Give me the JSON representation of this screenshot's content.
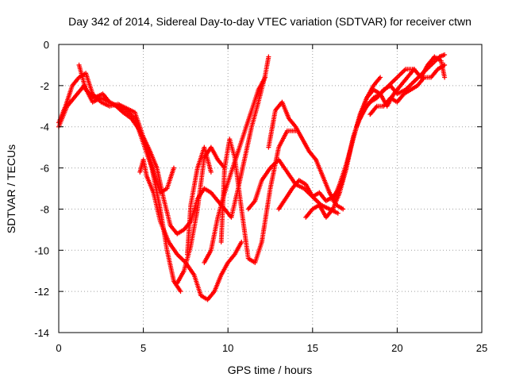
{
  "chart_data": {
    "type": "scatter",
    "title": "Day 342 of 2014, Sidereal Day-to-day VTEC variation (SDTVAR) for receiver ctwn",
    "xlabel": "GPS time / hours",
    "ylabel": "SDTVAR / TECUs",
    "xlim": [
      0,
      25
    ],
    "ylim": [
      -14,
      0
    ],
    "xticks": [
      0,
      5,
      10,
      15,
      20,
      25
    ],
    "yticks": [
      0,
      -2,
      -4,
      -6,
      -8,
      -10,
      -12,
      -14
    ],
    "xtick_labels": [
      "0",
      "5",
      "10",
      "15",
      "20",
      "25"
    ],
    "ytick_labels": [
      "0",
      "-2",
      "-4",
      "-6",
      "-8",
      "-10",
      "-12",
      "-14"
    ],
    "grid": true,
    "marker": "+",
    "color": "#ff0000",
    "series": [
      {
        "x": [
          0,
          0.4,
          0.8,
          1.2,
          1.6,
          2.0,
          2.5,
          3.0,
          3.5,
          4.0,
          4.5,
          5.0,
          5.4,
          5.8,
          6.2,
          6.6,
          7.0
        ],
        "y": [
          -3.8,
          -3.0,
          -2.0,
          -1.6,
          -1.4,
          -2.4,
          -2.8,
          -3.0,
          -2.9,
          -3.1,
          -3.3,
          -4.5,
          -5.2,
          -6.0,
          -7.5,
          -8.8,
          -9.2
        ]
      },
      {
        "x": [
          7.0,
          7.4,
          7.8,
          8.2,
          8.6,
          9.0,
          9.4,
          9.8,
          10.2,
          10.6,
          11.0,
          11.4,
          11.8,
          12.2,
          12.4
        ],
        "y": [
          -9.2,
          -9.0,
          -8.6,
          -7.5,
          -7.0,
          -7.2,
          -7.6,
          -8.0,
          -8.4,
          -7.0,
          -5.5,
          -4.0,
          -2.8,
          -1.5,
          -0.6
        ]
      },
      {
        "x": [
          0,
          0.5,
          1.0,
          1.5,
          2.0,
          2.5,
          3.0,
          3.5,
          4.0,
          4.5,
          5.0,
          5.5,
          6.0,
          6.4,
          6.8,
          7.2
        ],
        "y": [
          -4.0,
          -3.0,
          -2.5,
          -2.0,
          -2.8,
          -2.6,
          -2.8,
          -3.0,
          -3.2,
          -3.6,
          -4.8,
          -6.0,
          -8.0,
          -10.0,
          -11.5,
          -12.0
        ]
      },
      {
        "x": [
          1.2,
          1.6,
          2.1,
          2.6,
          3.0,
          3.4,
          3.8,
          4.3,
          4.8,
          5.2,
          5.6,
          6.0,
          6.4,
          6.8
        ],
        "y": [
          -1.0,
          -2.2,
          -2.6,
          -2.4,
          -2.8,
          -3.0,
          -3.3,
          -3.6,
          -4.2,
          -5.0,
          -6.2,
          -7.2,
          -7.0,
          -6.0
        ]
      },
      {
        "x": [
          4.8,
          5.0,
          5.2,
          5.6,
          6.0,
          6.5,
          7.0,
          7.5,
          8.0,
          8.4,
          8.8,
          9.2,
          9.6,
          10.0,
          10.4,
          10.8
        ],
        "y": [
          -6.2,
          -5.6,
          -6.4,
          -7.2,
          -8.6,
          -9.6,
          -10.2,
          -10.6,
          -11.2,
          -12.2,
          -12.4,
          -12.0,
          -11.2,
          -10.6,
          -10.2,
          -9.6
        ]
      },
      {
        "x": [
          7.0,
          7.4,
          7.8,
          8.2,
          8.6,
          9.0,
          9.4,
          9.8
        ],
        "y": [
          -11.6,
          -11.0,
          -9.8,
          -8.0,
          -5.5,
          -5.0,
          -5.6,
          -6.0
        ]
      },
      {
        "x": [
          7.6,
          7.8,
          8.2,
          8.6,
          9.0
        ],
        "y": [
          -10.2,
          -7.8,
          -6.0,
          -5.0,
          -6.2
        ]
      },
      {
        "x": [
          8.6,
          9.0,
          9.4,
          9.8,
          10.2,
          10.6,
          11.0,
          11.4,
          11.8,
          12.2
        ],
        "y": [
          -10.6,
          -10.0,
          -8.4,
          -7.2,
          -6.2,
          -5.2,
          -4.2,
          -3.2,
          -2.2,
          -1.6
        ]
      },
      {
        "x": [
          9.6,
          9.8,
          10.1,
          10.4,
          10.8,
          11.2,
          11.6,
          12.0,
          12.5,
          13.0,
          13.5,
          14.0
        ],
        "y": [
          -9.6,
          -6.0,
          -4.6,
          -5.5,
          -8.0,
          -10.4,
          -10.6,
          -9.6,
          -7.0,
          -5.0,
          -4.2,
          -4.2
        ]
      },
      {
        "x": [
          12.4,
          12.8,
          13.2,
          13.6,
          14.0,
          14.4,
          14.8,
          15.2,
          15.6,
          16.0,
          16.4,
          16.8
        ],
        "y": [
          -5.0,
          -3.2,
          -2.8,
          -3.6,
          -4.0,
          -4.6,
          -5.2,
          -5.6,
          -6.4,
          -7.2,
          -7.8,
          -8.0
        ]
      },
      {
        "x": [
          11.2,
          11.6,
          12.0,
          12.5,
          13.0,
          13.5,
          14.0,
          14.5,
          15.0,
          15.5,
          16.0,
          16.5
        ],
        "y": [
          -8.0,
          -7.6,
          -6.6,
          -6.0,
          -5.6,
          -6.2,
          -6.8,
          -7.0,
          -7.4,
          -7.8,
          -8.0,
          -8.2
        ]
      },
      {
        "x": [
          13.0,
          13.4,
          13.8,
          14.2,
          14.6,
          15.0,
          15.4,
          15.8,
          16.2,
          16.6,
          17.0
        ],
        "y": [
          -8.0,
          -7.5,
          -7.0,
          -6.6,
          -6.8,
          -7.4,
          -7.2,
          -7.6,
          -7.4,
          -7.0,
          -6.0
        ]
      },
      {
        "x": [
          14.6,
          15.0,
          15.4,
          15.8,
          16.2,
          16.6,
          17.0,
          17.4,
          17.8,
          18.2,
          18.6,
          19.0
        ],
        "y": [
          -8.4,
          -8.0,
          -7.8,
          -8.4,
          -8.0,
          -7.2,
          -6.0,
          -4.5,
          -3.5,
          -2.6,
          -2.0,
          -1.6
        ]
      },
      {
        "x": [
          16.2,
          16.6,
          17.0,
          17.4,
          17.8,
          18.2,
          18.6,
          19.0,
          19.5,
          20.0,
          20.5,
          21.0
        ],
        "y": [
          -7.6,
          -6.8,
          -5.8,
          -4.6,
          -3.4,
          -2.6,
          -2.2,
          -2.4,
          -2.0,
          -1.6,
          -1.2,
          -1.2
        ]
      },
      {
        "x": [
          17.6,
          18.0,
          18.4,
          18.8,
          19.2,
          19.6,
          20.0,
          20.5,
          21.0,
          21.5,
          22.0,
          22.5,
          22.8
        ],
        "y": [
          -4.0,
          -3.2,
          -2.8,
          -2.6,
          -2.2,
          -2.0,
          -2.4,
          -2.2,
          -1.8,
          -1.4,
          -1.0,
          -0.6,
          -0.5
        ]
      },
      {
        "x": [
          17.8,
          18.2,
          18.6,
          19.0,
          19.4,
          19.8,
          20.2,
          20.6,
          21.0,
          21.4,
          21.8,
          22.2,
          22.6,
          22.8
        ],
        "y": [
          -3.6,
          -3.0,
          -2.6,
          -2.4,
          -3.0,
          -2.4,
          -2.0,
          -1.6,
          -1.2,
          -1.6,
          -1.0,
          -0.6,
          -0.8,
          -1.6
        ]
      },
      {
        "x": [
          18.4,
          18.8,
          19.2,
          19.6,
          20.0,
          20.4,
          20.8,
          21.2,
          21.6,
          22.0,
          22.4,
          22.8
        ],
        "y": [
          -3.4,
          -3.0,
          -3.0,
          -2.6,
          -2.8,
          -2.4,
          -2.2,
          -2.0,
          -1.6,
          -1.6,
          -1.2,
          -1.0
        ]
      }
    ]
  }
}
